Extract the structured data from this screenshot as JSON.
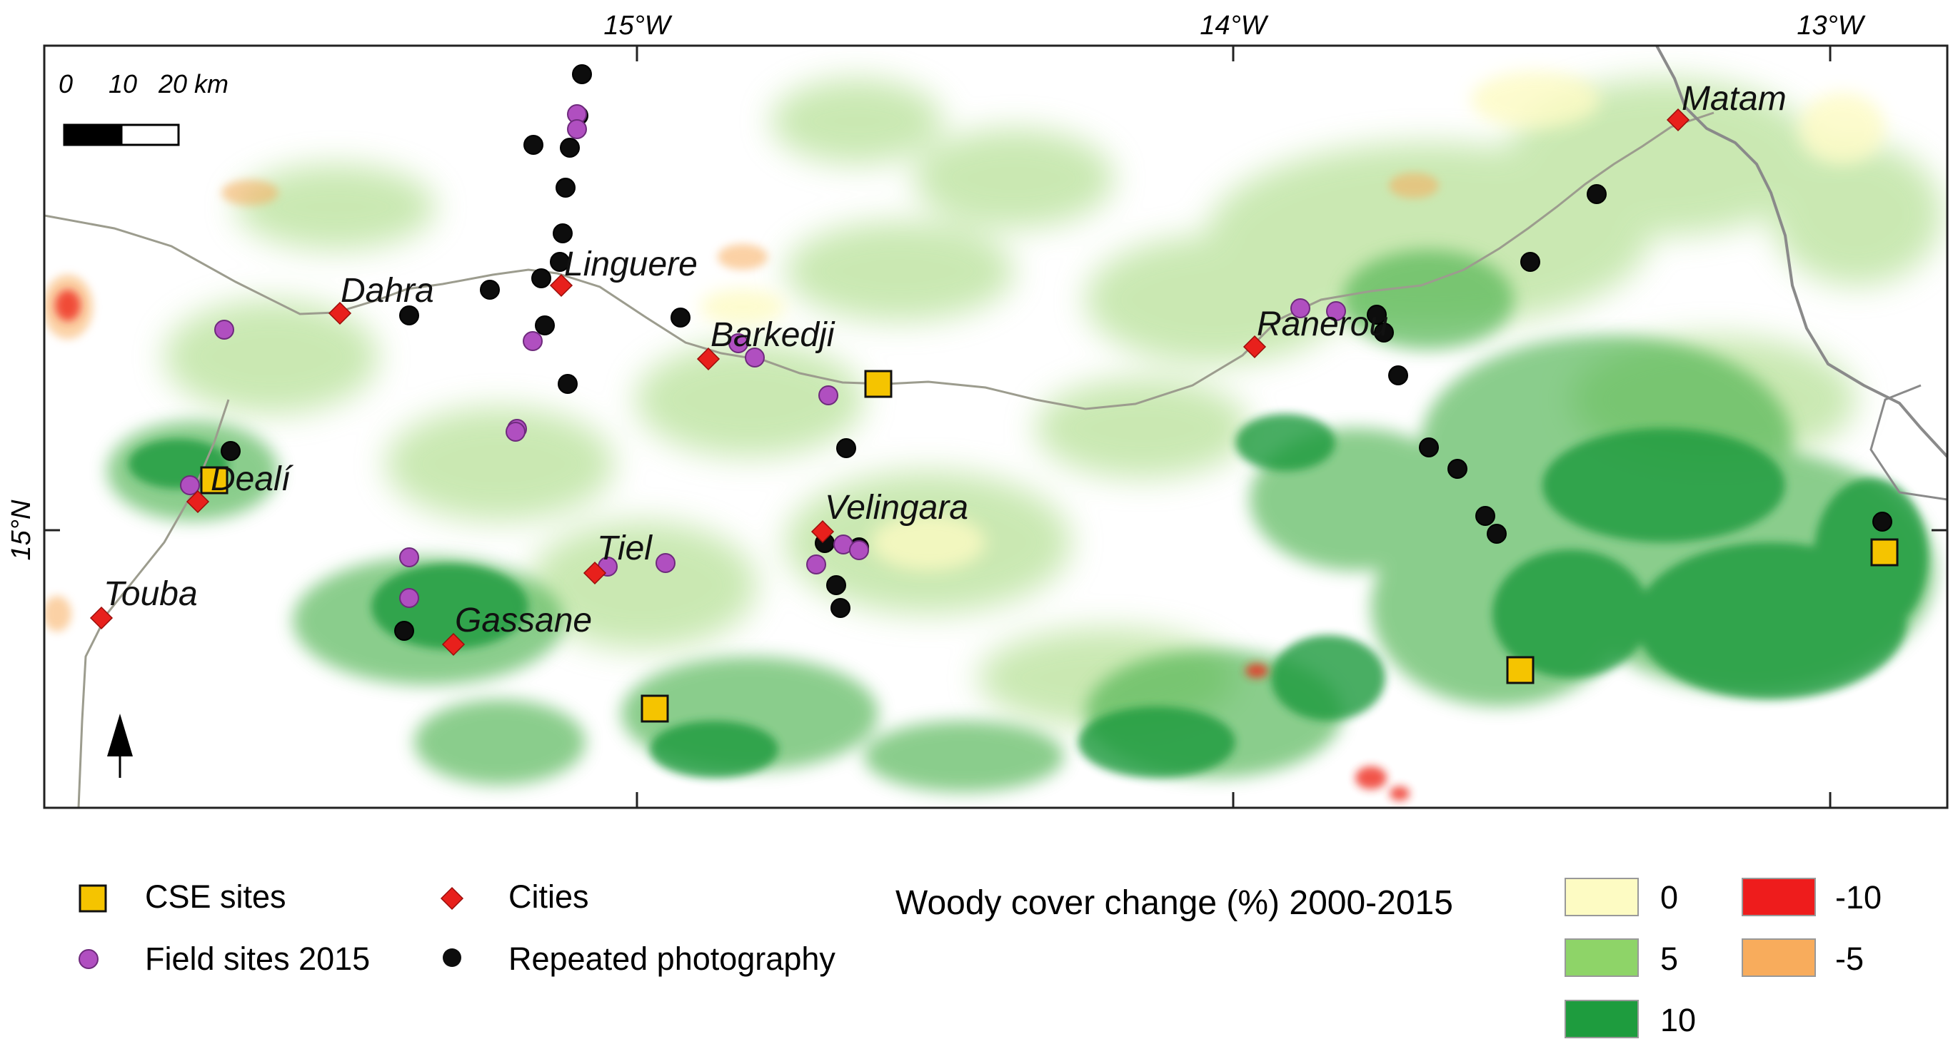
{
  "map": {
    "graticule": {
      "lon_labels": [
        "15°W",
        "14°W",
        "13°W"
      ],
      "lat_label": "15°N"
    },
    "scale_bar": {
      "labels": [
        "0",
        "10",
        "20 km"
      ]
    },
    "cities": [
      {
        "name": "Dahra"
      },
      {
        "name": "Linguere"
      },
      {
        "name": "Barkedji"
      },
      {
        "name": "Ranerou"
      },
      {
        "name": "Matam"
      },
      {
        "name": "Dealí"
      },
      {
        "name": "Touba"
      },
      {
        "name": "Gassane"
      },
      {
        "name": "Tiel"
      },
      {
        "name": "Velingara"
      }
    ]
  },
  "legend": {
    "symbols": [
      {
        "label": "CSE sites",
        "icon": "square-yellow-icon",
        "color": "#f5c400"
      },
      {
        "label": "Field sites 2015",
        "icon": "circle-magenta-icon",
        "color": "#b04fc0"
      },
      {
        "label": "Cities",
        "icon": "diamond-red-icon",
        "color": "#e8201c"
      },
      {
        "label": "Repeated photography",
        "icon": "circle-black-icon",
        "color": "#0d0d0d"
      }
    ],
    "change_title": "Woody cover change (%) 2000-2015",
    "classes": [
      {
        "label": "0",
        "color": "#fdfbc3"
      },
      {
        "label": "5",
        "color": "#8ed468"
      },
      {
        "label": "10",
        "color": "#1e9c3e"
      },
      {
        "label": "-10",
        "color": "#ee1c1c"
      },
      {
        "label": "-5",
        "color": "#f8ac5c"
      }
    ]
  }
}
